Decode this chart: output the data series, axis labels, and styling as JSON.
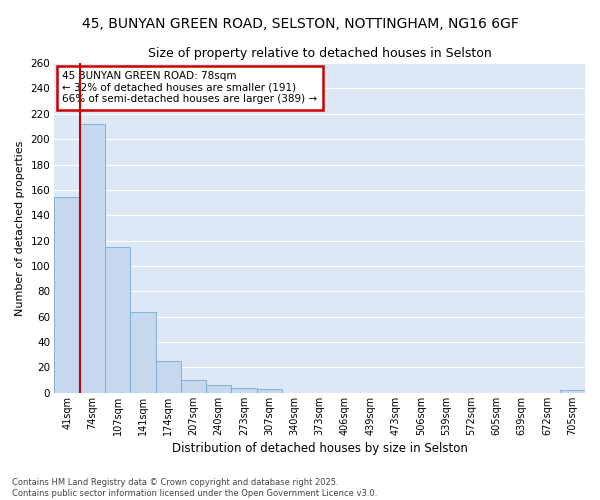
{
  "title_line1": "45, BUNYAN GREEN ROAD, SELSTON, NOTTINGHAM, NG16 6GF",
  "title_line2": "Size of property relative to detached houses in Selston",
  "xlabel": "Distribution of detached houses by size in Selston",
  "ylabel": "Number of detached properties",
  "categories": [
    "41sqm",
    "74sqm",
    "107sqm",
    "141sqm",
    "174sqm",
    "207sqm",
    "240sqm",
    "273sqm",
    "307sqm",
    "340sqm",
    "373sqm",
    "406sqm",
    "439sqm",
    "473sqm",
    "506sqm",
    "539sqm",
    "572sqm",
    "605sqm",
    "639sqm",
    "672sqm",
    "705sqm"
  ],
  "values": [
    154,
    212,
    115,
    64,
    25,
    10,
    6,
    4,
    3,
    0,
    0,
    0,
    0,
    0,
    0,
    0,
    0,
    0,
    0,
    0,
    2
  ],
  "bar_color": "#c5d8f0",
  "bar_edge_color": "#7aaacc",
  "vline_color": "#cc0000",
  "vline_position": 0.5,
  "ylim": [
    0,
    260
  ],
  "yticks": [
    0,
    20,
    40,
    60,
    80,
    100,
    120,
    140,
    160,
    180,
    200,
    220,
    240,
    260
  ],
  "annotation_title": "45 BUNYAN GREEN ROAD: 78sqm",
  "annotation_line1": "← 32% of detached houses are smaller (191)",
  "annotation_line2": "66% of semi-detached houses are larger (389) →",
  "annotation_box_color": "#ffffff",
  "annotation_box_edge": "#cc0000",
  "plot_bg_color": "#dce8f5",
  "fig_bg_color": "#ffffff",
  "grid_color": "#ffffff",
  "footer_line1": "Contains HM Land Registry data © Crown copyright and database right 2025.",
  "footer_line2": "Contains public sector information licensed under the Open Government Licence v3.0."
}
